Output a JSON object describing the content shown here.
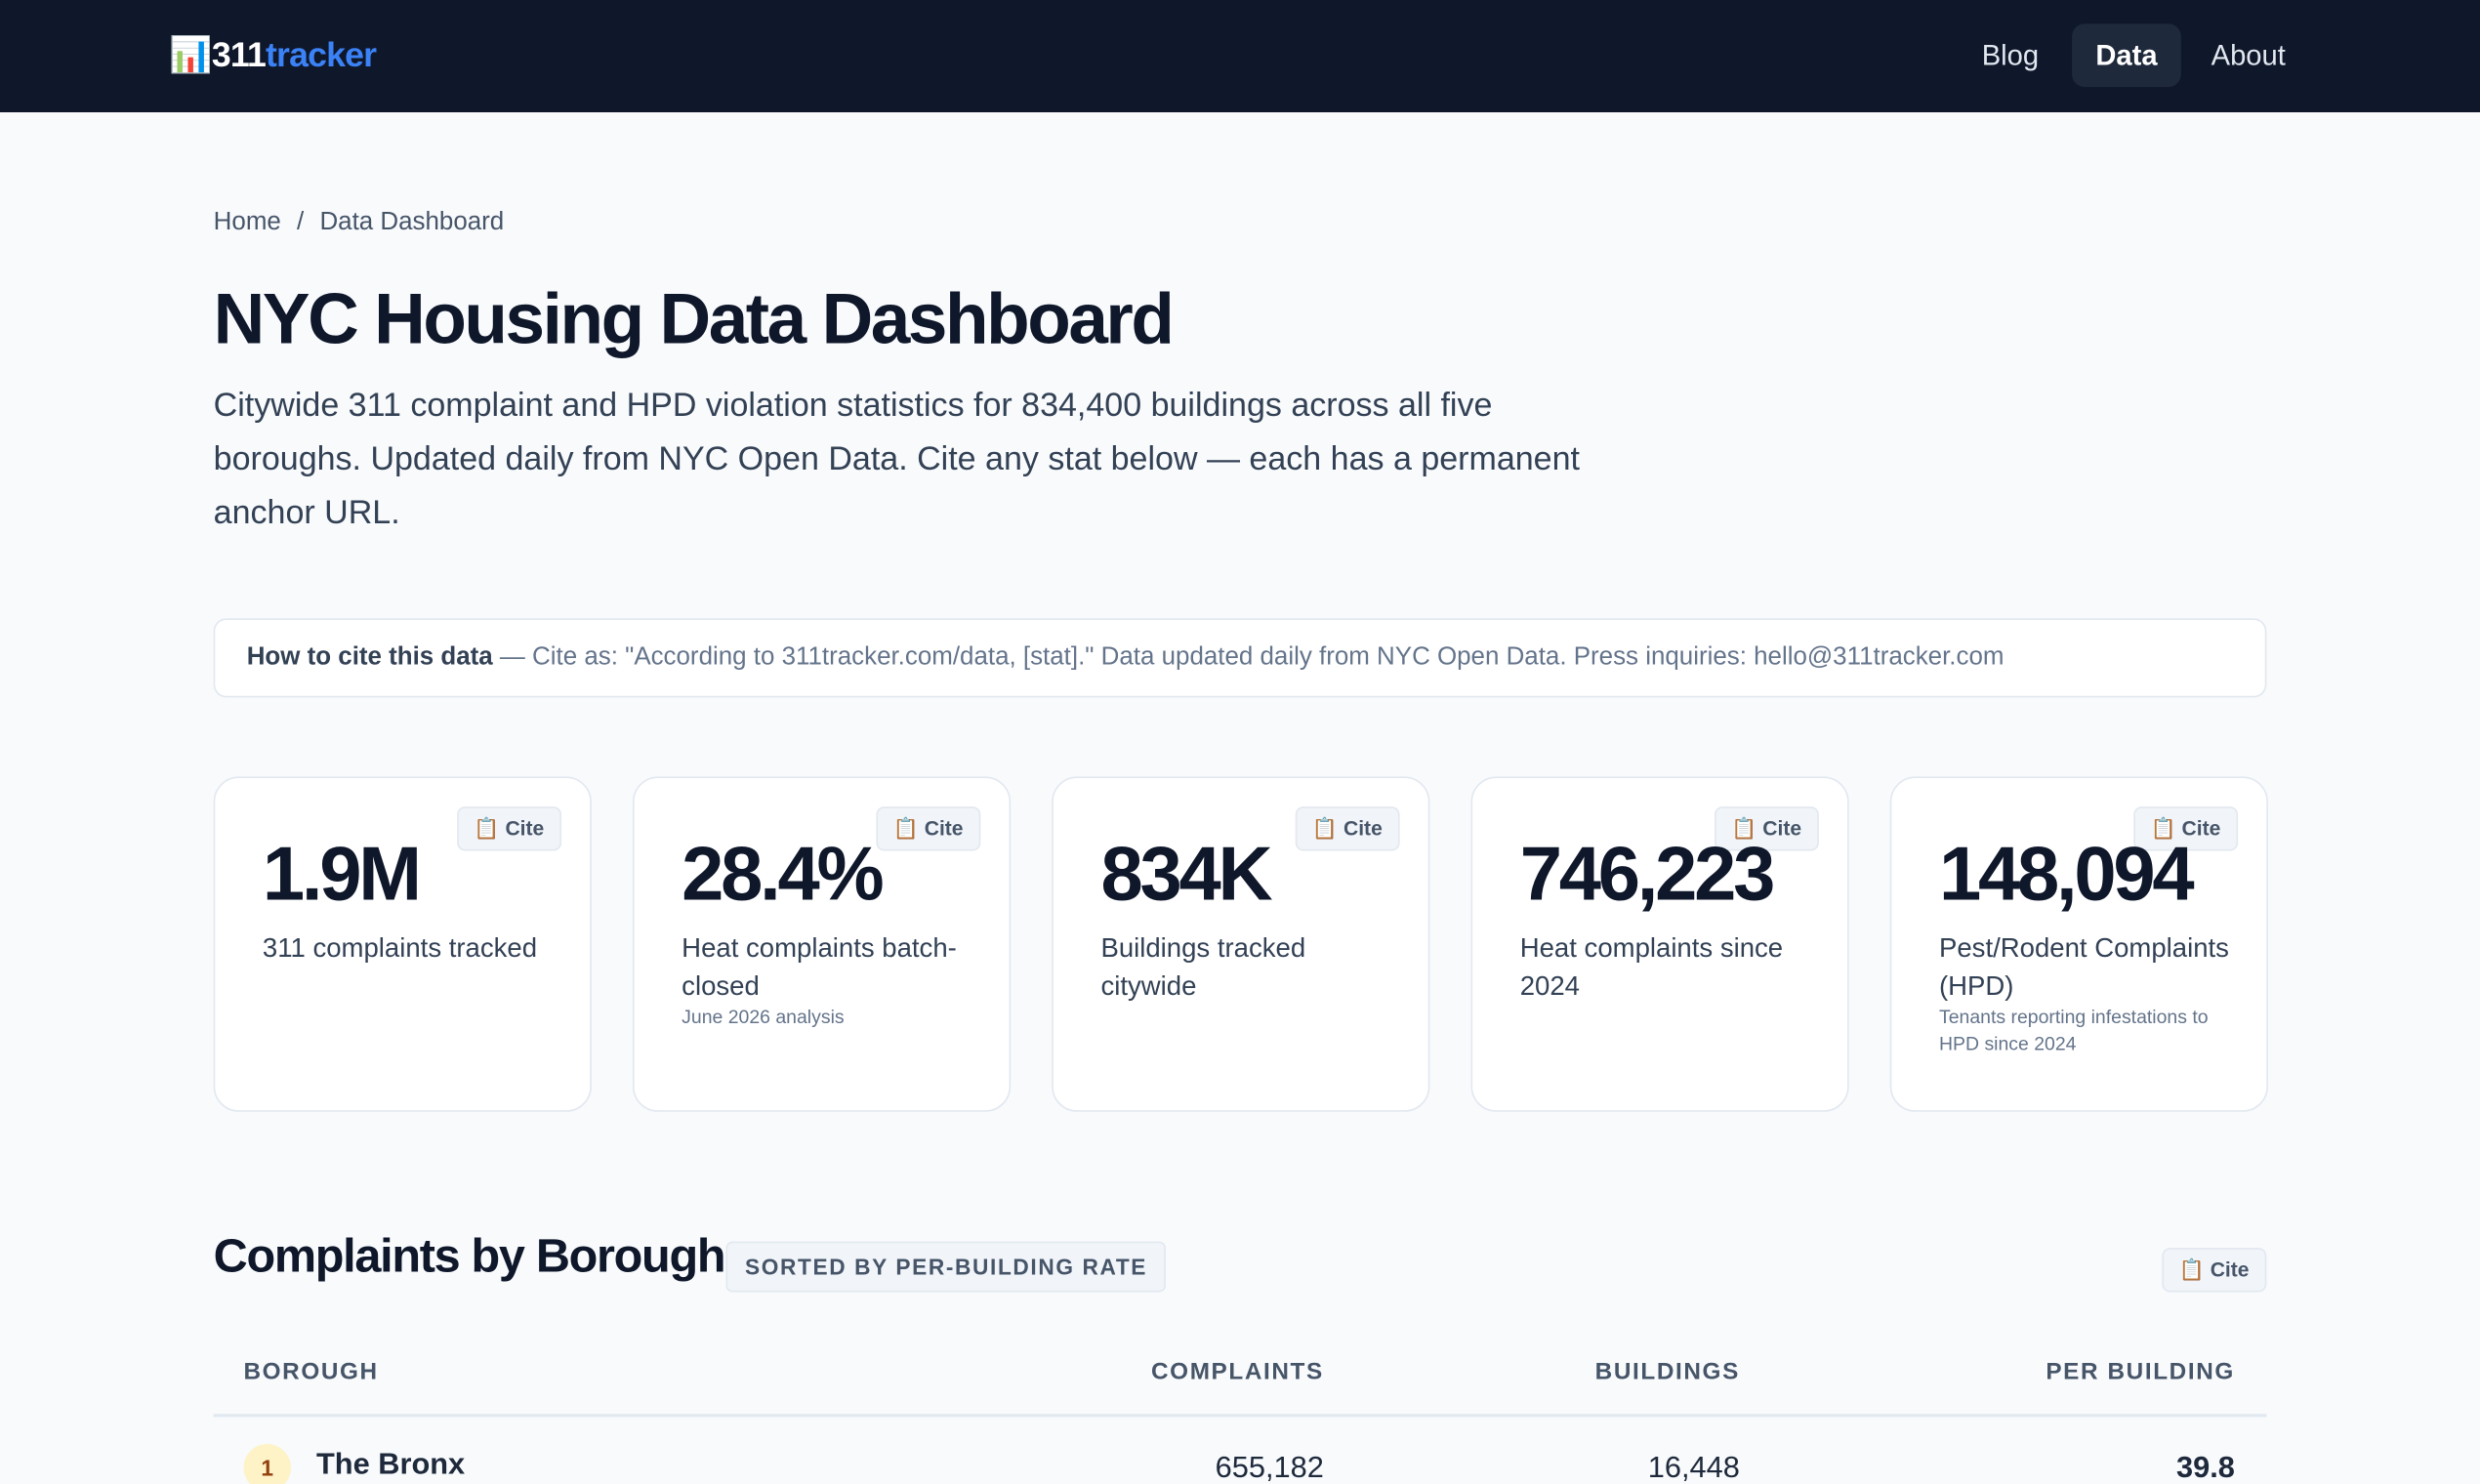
{
  "nav": {
    "logo_number": "311",
    "logo_word": "tracker",
    "links": [
      "Blog",
      "Data",
      "About"
    ]
  },
  "breadcrumb": [
    "Home",
    "/",
    "Data Dashboard"
  ],
  "title": "NYC Housing Data Dashboard",
  "intro": "Citywide 311 complaint and HPD violation statistics for 834,400 buildings across all five boroughs. Updated daily from NYC Open Data. Cite any stat below — each has a permanent anchor URL.",
  "cite_box": {
    "label": "How to cite this data",
    "text": " — Cite as: \"According to 311tracker.com/data, [stat].\" Data updated daily from NYC Open Data. Press inquiries: hello@311tracker.com"
  },
  "cards": [
    {
      "value": "1.9M",
      "label": "311 complaints tracked",
      "cite": "Cite"
    },
    {
      "value": "28.4%",
      "label": "Heat complaints batch-closed",
      "note": "June 2026 analysis",
      "cite": "Cite"
    },
    {
      "value": "834K",
      "label": "Buildings tracked citywide",
      "cite": "Cite"
    },
    {
      "value": "746,223",
      "label": "Heat complaints since 2024",
      "cite": "Cite"
    },
    {
      "value": "148,094",
      "label": "Pest/Rodent Complaints (HPD)",
      "note": "Tenants reporting infestations to HPD since 2024",
      "cite": "Cite"
    }
  ],
  "section": {
    "title": "Complaints by Borough",
    "badge": "SORTED BY PER-BUILDING RATE",
    "cite": "Cite"
  },
  "table": {
    "headers": [
      "BOROUGH",
      "COMPLAINTS",
      "BUILDINGS",
      "PER BUILDING"
    ],
    "rows": [
      [
        "1",
        "The Bronx",
        "655,182",
        "16,448",
        "39.8"
      ]
    ]
  }
}
